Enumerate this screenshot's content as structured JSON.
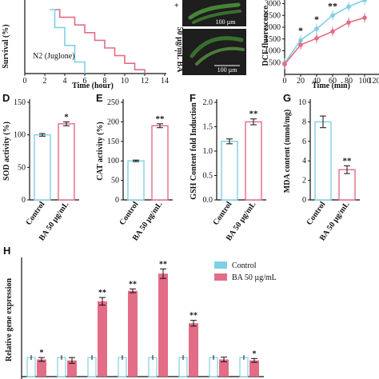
{
  "colors": {
    "control": "#7fd0e6",
    "treated": "#e36c86",
    "axis": "#111111"
  },
  "chart_data": [
    {
      "panel": "",
      "type": "line",
      "ylabel": "Survival (%)",
      "xlabel": "Time (hour)",
      "xlim": [
        0,
        14
      ],
      "xticks": [
        "0",
        "2",
        "4",
        "6",
        "8",
        "10",
        "12",
        "14"
      ],
      "legend_text": "N2 (Juglone)",
      "series": [
        {
          "color": "treated",
          "x": [
            3,
            3.5,
            3.5,
            5,
            5,
            6,
            6,
            7,
            7,
            8,
            8,
            9,
            9,
            10,
            10,
            11,
            11,
            12,
            12
          ],
          "y": [
            100,
            100,
            88,
            88,
            76,
            76,
            64,
            64,
            52,
            52,
            40,
            40,
            28,
            28,
            16,
            16,
            6,
            6,
            0
          ]
        },
        {
          "color": "control",
          "x": [
            2.5,
            3,
            3,
            4,
            4,
            5,
            5,
            6,
            6
          ],
          "y": [
            100,
            100,
            72,
            72,
            44,
            44,
            18,
            18,
            0
          ]
        }
      ]
    },
    {
      "panel": "",
      "type": "image",
      "labels": [
        "+",
        "50 µg/mL BA",
        "-"
      ],
      "scalebars": [
        "100 µm",
        "100 µm"
      ]
    },
    {
      "panel": "",
      "type": "line",
      "ylabel": "DCF fluorescence",
      "xlabel": "Time (min)",
      "xticks": [
        "0",
        "20",
        "40",
        "60",
        "80",
        "100",
        "120"
      ],
      "yticks": [
        "500",
        "1000",
        "1500",
        "2000",
        "2500",
        "3000"
      ],
      "ylim": [
        0,
        3000
      ],
      "series": [
        {
          "color": "control",
          "x": [
            0,
            20,
            40,
            60,
            80,
            100
          ],
          "y": [
            480,
            1450,
            1930,
            2500,
            2870,
            3150
          ]
        },
        {
          "color": "treated",
          "x": [
            0,
            20,
            40,
            60,
            80,
            100
          ],
          "y": [
            430,
            1250,
            1530,
            1820,
            2200,
            2400
          ]
        }
      ],
      "annotations": [
        {
          "x": 20,
          "text": "*"
        },
        {
          "x": 40,
          "text": "*"
        },
        {
          "x": 60,
          "text": "**"
        }
      ]
    },
    {
      "panel": "D",
      "type": "bar",
      "ylabel": "SOD activity (%)",
      "categories": [
        "Control",
        "BA 50 µg/mL"
      ],
      "values": [
        100,
        117
      ],
      "errors": [
        2,
        3
      ],
      "ylim": [
        0,
        150
      ],
      "yticks": [
        "0",
        "50",
        "100",
        "150"
      ],
      "sig": [
        "",
        "*"
      ]
    },
    {
      "panel": "E",
      "type": "bar",
      "ylabel": "CAT activity (%)",
      "categories": [
        "Control",
        "BA 50 µg/mL"
      ],
      "values": [
        100,
        190
      ],
      "errors": [
        2,
        5
      ],
      "ylim": [
        0,
        250
      ],
      "yticks": [
        "0",
        "50",
        "100",
        "150",
        "200",
        "250"
      ],
      "sig": [
        "",
        "**"
      ]
    },
    {
      "panel": "F",
      "type": "bar",
      "ylabel": "GSH Content fold Induction",
      "categories": [
        "Control",
        "BA 50 µg/mL"
      ],
      "values": [
        1.2,
        1.6
      ],
      "errors": [
        0.05,
        0.06
      ],
      "ylim": [
        0,
        2.0
      ],
      "yticks": [
        "0.0",
        "0.5",
        "1.0",
        "1.5",
        "2.0"
      ],
      "sig": [
        "",
        "**"
      ]
    },
    {
      "panel": "G",
      "type": "bar",
      "ylabel": "MDA content (nmol/mg)",
      "categories": [
        "Control",
        "BA 50 µg/mL"
      ],
      "values": [
        8.0,
        3.1
      ],
      "errors": [
        0.6,
        0.4
      ],
      "ylim": [
        0,
        10
      ],
      "yticks": [
        "0",
        "2",
        "4",
        "6",
        "8",
        "10"
      ],
      "sig": [
        "",
        "**"
      ]
    },
    {
      "panel": "H",
      "type": "bar",
      "ylabel": "Relative gene expression",
      "ylim": [
        0,
        6
      ],
      "series": [
        {
          "name": "Control",
          "color": "control",
          "values": [
            1.0,
            1.0,
            1.0,
            1.0,
            1.0,
            1.0,
            1.0,
            1.0
          ]
        },
        {
          "name": "BA 50 µg/mL",
          "color": "treated",
          "values": [
            0.9,
            0.85,
            3.95,
            4.5,
            5.4,
            2.8,
            0.9,
            0.85
          ]
        }
      ],
      "errors": [
        0.1,
        0.15,
        0.2,
        0.1,
        0.25,
        0.15,
        0.12,
        0.1
      ],
      "sig": [
        "*",
        "",
        "**",
        "**",
        "**",
        "**",
        "",
        "*"
      ]
    }
  ]
}
